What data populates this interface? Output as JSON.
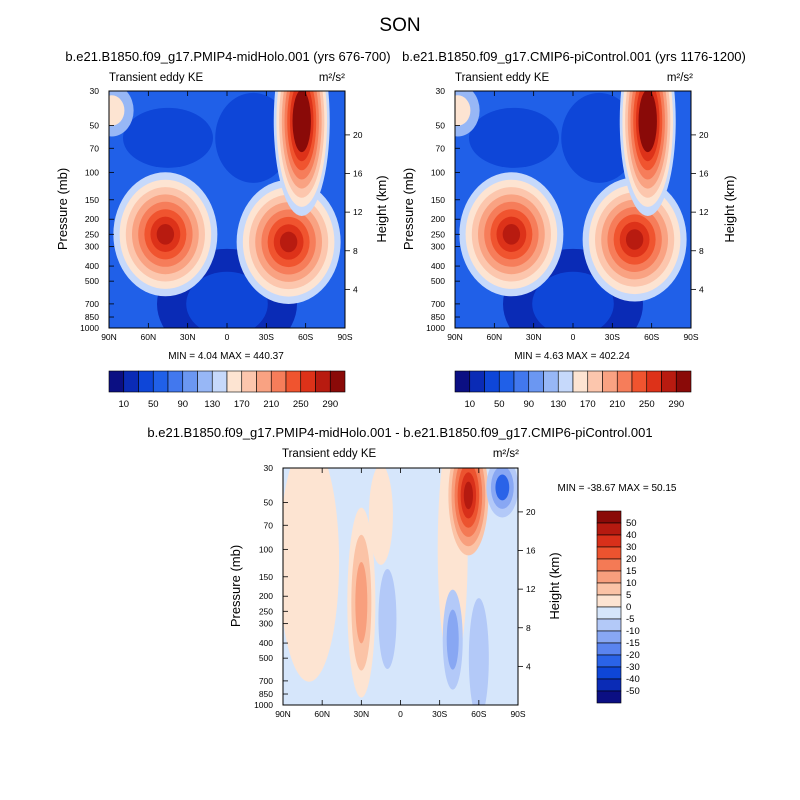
{
  "figure": {
    "title": "SON",
    "diff_stats": "MIN = -38.67  MAX =  50.15"
  },
  "colors": {
    "abs_palette": [
      "#0b0f83",
      "#0a2bb6",
      "#0e46d8",
      "#2060e8",
      "#4278ee",
      "#6b97f2",
      "#97b7f6",
      "#c6d9fb",
      "#fde4d2",
      "#fcc6ad",
      "#f9a282",
      "#f67d5a",
      "#f0542f",
      "#dd3219",
      "#b81b10",
      "#8a0a08"
    ],
    "diff_palette": [
      "#0b0f83",
      "#0a2bb6",
      "#0e46d8",
      "#2a63e8",
      "#5a84ef",
      "#88a7f3",
      "#b3c9f8",
      "#d6e6fb",
      "#fde4d2",
      "#fbc3a6",
      "#f89f7d",
      "#f47a55",
      "#ec532f",
      "#d8301a",
      "#b51a10",
      "#8a0a08"
    ]
  },
  "chart_data": [
    {
      "type": "heatmap",
      "name": "b.e21.B1850.f09_g17.PMIP4-midHolo.001 (yrs 676-700)",
      "title": "b.e21.B1850.f09_g17.PMIP4-midHolo.001 (yrs 676-700)",
      "left_label": "Transient eddy KE",
      "right_label": "m²/s²",
      "xlabel": "",
      "ylabel": "Pressure (mb)",
      "y2label": "Height (km)",
      "x_ticks": [
        "90N",
        "60N",
        "30N",
        "0",
        "30S",
        "60S",
        "90S"
      ],
      "x_values": [
        90,
        60,
        30,
        0,
        -30,
        -60,
        -90
      ],
      "y_ticks": [
        30,
        50,
        70,
        100,
        150,
        200,
        250,
        300,
        400,
        500,
        700,
        850,
        1000
      ],
      "y_scale": "log",
      "ylim": [
        1000,
        30
      ],
      "height_ticks": [
        4,
        8,
        12,
        16,
        20
      ],
      "min_max": "MIN =   4.04  MAX = 440.37",
      "min": 4.04,
      "max": 440.37,
      "colorbar_labels": [
        "10",
        "50",
        "90",
        "130",
        "170",
        "210",
        "250",
        "290"
      ],
      "colorbar_levels": [
        10,
        30,
        50,
        70,
        90,
        110,
        130,
        150,
        170,
        190,
        210,
        230,
        250,
        270,
        290
      ],
      "features": [
        {
          "lat": 47,
          "p": 250,
          "value": 285
        },
        {
          "lat": -47,
          "p": 280,
          "value": 270
        },
        {
          "lat": -57,
          "p": 30,
          "value": 440
        },
        {
          "lat": 38,
          "p": 60,
          "value": 40
        },
        {
          "lat": 0,
          "p": 600,
          "value": 10
        }
      ]
    },
    {
      "type": "heatmap",
      "name": "b.e21.B1850.f09_g17.CMIP6-piControl.001 (yrs 1176-1200)",
      "title": "b.e21.B1850.f09_g17.CMIP6-piControl.001 (yrs 1176-1200)",
      "left_label": "Transient eddy KE",
      "right_label": "m²/s²",
      "xlabel": "",
      "ylabel": "Pressure (mb)",
      "y2label": "Height (km)",
      "x_ticks": [
        "90N",
        "60N",
        "30N",
        "0",
        "30S",
        "60S",
        "90S"
      ],
      "x_values": [
        90,
        60,
        30,
        0,
        -30,
        -60,
        -90
      ],
      "y_ticks": [
        30,
        50,
        70,
        100,
        150,
        200,
        250,
        300,
        400,
        500,
        700,
        850,
        1000
      ],
      "y_scale": "log",
      "ylim": [
        1000,
        30
      ],
      "height_ticks": [
        4,
        8,
        12,
        16,
        20
      ],
      "min_max": "MIN =   4.63  MAX = 402.24",
      "min": 4.63,
      "max": 402.24,
      "colorbar_labels": [
        "10",
        "50",
        "90",
        "130",
        "170",
        "210",
        "250",
        "290"
      ],
      "colorbar_levels": [
        10,
        30,
        50,
        70,
        90,
        110,
        130,
        150,
        170,
        190,
        210,
        230,
        250,
        270,
        290
      ],
      "features": [
        {
          "lat": 47,
          "p": 250,
          "value": 280
        },
        {
          "lat": -47,
          "p": 270,
          "value": 285
        },
        {
          "lat": -57,
          "p": 30,
          "value": 400
        },
        {
          "lat": 38,
          "p": 60,
          "value": 40
        },
        {
          "lat": 0,
          "p": 600,
          "value": 10
        }
      ]
    },
    {
      "type": "heatmap",
      "name": "b.e21.B1850.f09_g17.PMIP4-midHolo.001 - b.e21.B1850.f09_g17.CMIP6-piControl.001",
      "title": "b.e21.B1850.f09_g17.PMIP4-midHolo.001 - b.e21.B1850.f09_g17.CMIP6-piControl.001",
      "left_label": "Transient eddy KE",
      "right_label": "m²/s²",
      "xlabel": "",
      "ylabel": "Pressure (mb)",
      "y2label": "Height (km)",
      "x_ticks": [
        "90N",
        "60N",
        "30N",
        "0",
        "30S",
        "60S",
        "90S"
      ],
      "x_values": [
        90,
        60,
        30,
        0,
        -30,
        -60,
        -90
      ],
      "y_ticks": [
        30,
        50,
        70,
        100,
        150,
        200,
        250,
        300,
        400,
        500,
        700,
        850,
        1000
      ],
      "y_scale": "log",
      "ylim": [
        1000,
        30
      ],
      "height_ticks": [
        4,
        8,
        12,
        16,
        20
      ],
      "min": -38.67,
      "max": 50.15,
      "colorbar_labels": [
        "50",
        "40",
        "30",
        "20",
        "15",
        "10",
        "5",
        "0",
        "-5",
        "-10",
        "-15",
        "-20",
        "-30",
        "-40",
        "-50"
      ],
      "colorbar_levels": [
        -50,
        -40,
        -30,
        -20,
        -15,
        -10,
        -5,
        0,
        5,
        10,
        15,
        20,
        30,
        40,
        50
      ],
      "features": [
        {
          "lat": -52,
          "p": 35,
          "value": 50
        },
        {
          "lat": -75,
          "p": 40,
          "value": -25
        },
        {
          "lat": 30,
          "p": 170,
          "value": 12
        },
        {
          "lat": -38,
          "p": 350,
          "value": -12
        },
        {
          "lat": 70,
          "p": 100,
          "value": 5
        }
      ]
    }
  ]
}
